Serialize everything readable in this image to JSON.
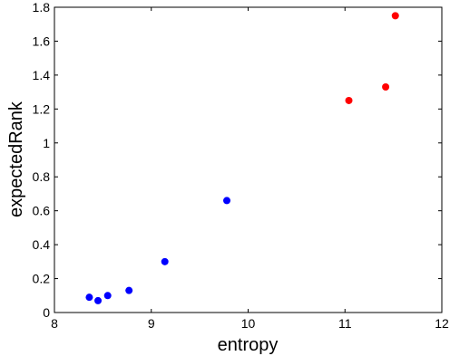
{
  "chart_data": {
    "type": "scatter",
    "xlabel": "entropy",
    "ylabel": "expectedRank",
    "xlim": [
      8,
      12
    ],
    "ylim": [
      0,
      1.8
    ],
    "x_ticks": [
      "8",
      "9",
      "10",
      "11",
      "12"
    ],
    "y_ticks": [
      "0",
      "0.2",
      "0.4",
      "0.6",
      "0.8",
      "1",
      "1.2",
      "1.4",
      "1.6",
      "1.8"
    ],
    "grid": false,
    "series": [
      {
        "color": "#0000ff",
        "points": [
          {
            "x": 8.36,
            "y": 0.09
          },
          {
            "x": 8.45,
            "y": 0.07
          },
          {
            "x": 8.55,
            "y": 0.1
          },
          {
            "x": 8.77,
            "y": 0.13
          },
          {
            "x": 9.14,
            "y": 0.3
          },
          {
            "x": 9.78,
            "y": 0.66
          }
        ]
      },
      {
        "color": "#ff0000",
        "points": [
          {
            "x": 11.04,
            "y": 1.25
          },
          {
            "x": 11.42,
            "y": 1.33
          },
          {
            "x": 11.52,
            "y": 1.75
          }
        ]
      }
    ]
  }
}
